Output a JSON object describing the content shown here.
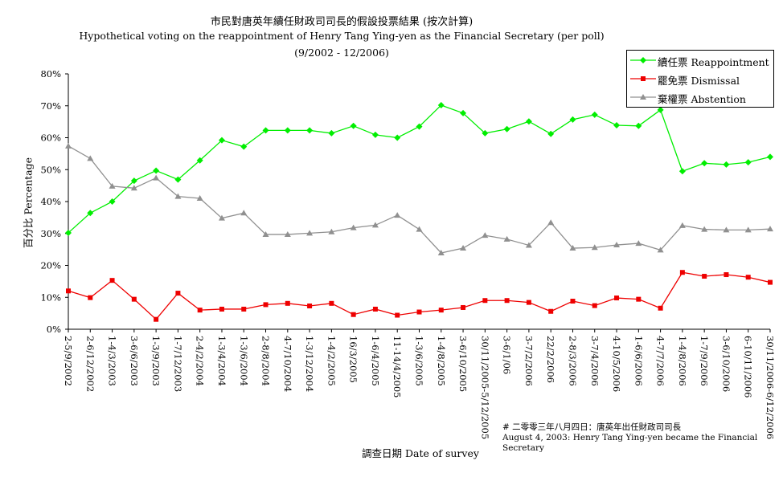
{
  "titles": {
    "zh": "市民對唐英年續任財政司司長的假設投票結果 (按次計算)",
    "en": "Hypothetical voting on the reappointment of Henry Tang Ying-yen as the Financial Secretary (per poll)",
    "range": "(9/2002 - 12/2006)"
  },
  "note": {
    "zh": "# 二零零三年八月四日：唐英年出任財政司司長",
    "en1": "August 4, 2003: Henry Tang Ying-yen became the Financial",
    "en2": "Secretary"
  },
  "chart_data": {
    "type": "line",
    "xlabel": "調查日期 Date of survey",
    "ylabel": "百分比 Percentage",
    "ylim": [
      0,
      80
    ],
    "yticks": [
      "0%",
      "10%",
      "20%",
      "30%",
      "40%",
      "50%",
      "60%",
      "70%",
      "80%"
    ],
    "grid": false,
    "legend_position": "top-right",
    "categories": [
      "2-5/9/2002",
      "2-6/12/2002",
      "1-4/3/2003",
      "3-6/6/2003",
      "1-3/9/2003",
      "1-7/12/2003",
      "2-4/2/2004",
      "1-3/4/2004",
      "1-3/6/2004",
      "2-8/8/2004",
      "4-7/10/2004",
      "1-3/12/2004",
      "1-4/2/2005",
      "16/3/2005",
      "1-6/4/2005",
      "11-14/4/2005",
      "1-3/6/2005",
      "1-4/8/2005",
      "3-6/10/2005",
      "30/11/2005-5/12/2005",
      "3-6/1/06",
      "3-7/2/2006",
      "22/2/2006",
      "2-8/3/2006",
      "3-7/4/2006",
      "4-10/5/2006",
      "1-6/6/2006",
      "4-7/7/2006",
      "1-4/8/2006",
      "1-7/9/2006",
      "3-6/10/2006",
      "6-10/11/2006",
      "30/11/2006-6/12/2006"
    ],
    "series": [
      {
        "name": "續任票 Reappointment",
        "color": "#00ee00",
        "marker": "diamond",
        "values": [
          30.2,
          36.4,
          40.0,
          46.5,
          49.7,
          46.9,
          52.9,
          59.2,
          57.2,
          62.3,
          62.3,
          62.3,
          61.4,
          63.7,
          60.9,
          60.0,
          63.5,
          70.2,
          67.7,
          61.4,
          62.7,
          65.1,
          61.2,
          65.7,
          67.2,
          63.9,
          63.7,
          68.7,
          49.5,
          52.0,
          51.6,
          52.3,
          54.0
        ]
      },
      {
        "name": "罷免票 Dismissal",
        "color": "#ee0000",
        "marker": "square",
        "values": [
          12.0,
          9.9,
          15.3,
          9.4,
          3.1,
          11.3,
          6.0,
          6.3,
          6.3,
          7.7,
          8.1,
          7.3,
          8.1,
          4.6,
          6.3,
          4.4,
          5.4,
          6.0,
          6.8,
          9.0,
          9.0,
          8.4,
          5.6,
          8.8,
          7.4,
          9.8,
          9.4,
          6.6,
          17.8,
          16.6,
          17.1,
          16.3,
          14.7
        ]
      },
      {
        "name": "棄權票 Abstention",
        "color": "#909090",
        "marker": "triangle",
        "values": [
          57.4,
          53.5,
          44.8,
          44.2,
          47.4,
          41.6,
          41.0,
          34.8,
          36.4,
          29.7,
          29.7,
          30.1,
          30.5,
          31.8,
          32.6,
          35.7,
          31.3,
          23.9,
          25.4,
          29.4,
          28.2,
          26.3,
          33.4,
          25.4,
          25.6,
          26.4,
          26.9,
          24.8,
          32.5,
          31.3,
          31.1,
          31.1,
          31.4
        ]
      }
    ]
  }
}
